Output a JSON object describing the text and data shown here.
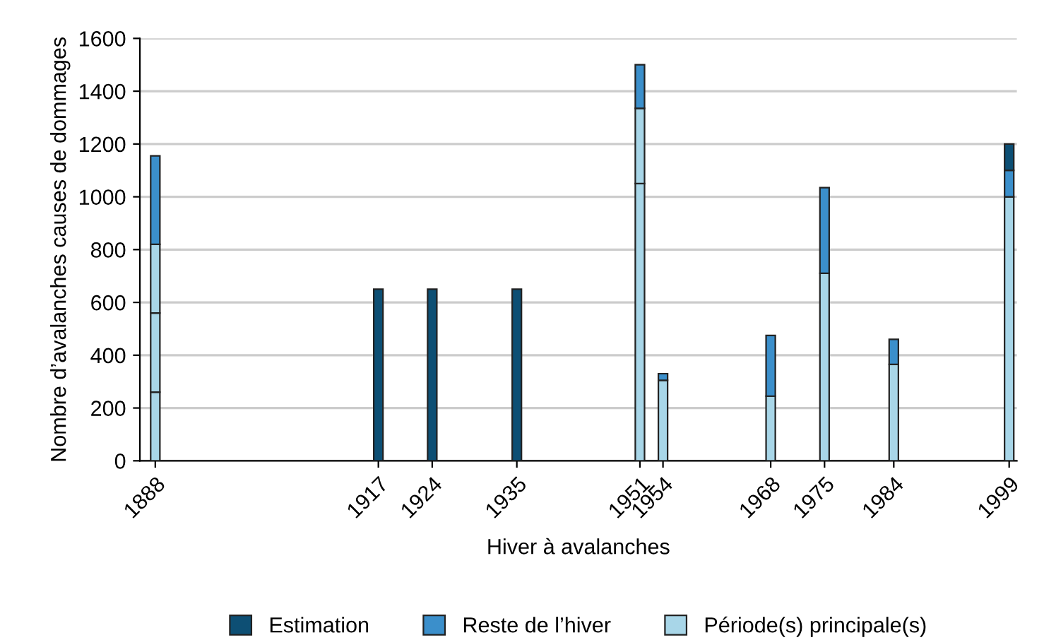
{
  "chart_data": {
    "type": "bar",
    "stacked": true,
    "x": [
      1888,
      1917,
      1924,
      1935,
      1951,
      1954,
      1968,
      1975,
      1984,
      1999
    ],
    "series": [
      {
        "name": "Période(s) principale(s)",
        "color": "#a8d6e8",
        "values": [
          260,
          null,
          null,
          null,
          1050,
          305,
          245,
          710,
          365,
          1000
        ]
      },
      {
        "color": "#a8d6e8",
        "values": [
          300,
          null,
          null,
          null,
          285,
          null,
          null,
          null,
          null,
          null
        ]
      },
      {
        "color": "#a8d6e8",
        "values": [
          260,
          null,
          null,
          null,
          null,
          null,
          null,
          null,
          null,
          null
        ]
      },
      {
        "name": "Reste de l’hiver",
        "color": "#3b8fcb",
        "values": [
          335,
          null,
          null,
          null,
          165,
          25,
          230,
          325,
          95,
          100
        ]
      },
      {
        "name": "Estimation",
        "color": "#0d4f74",
        "values": [
          null,
          650,
          650,
          650,
          null,
          null,
          null,
          null,
          null,
          100
        ]
      }
    ],
    "xlabel": "Hiver à avalanches",
    "ylabel": "Nombre d’avalanches causes de dommages",
    "xlim": [
      1886,
      2000
    ],
    "xticks": [
      1888,
      1917,
      1924,
      1935,
      1951,
      1954,
      1968,
      1975,
      1984,
      1999
    ],
    "ylim": [
      0,
      1600
    ],
    "yticks": [
      0,
      200,
      400,
      600,
      800,
      1000,
      1200,
      1400,
      1600
    ],
    "grid": "y",
    "legend": "bottom"
  }
}
